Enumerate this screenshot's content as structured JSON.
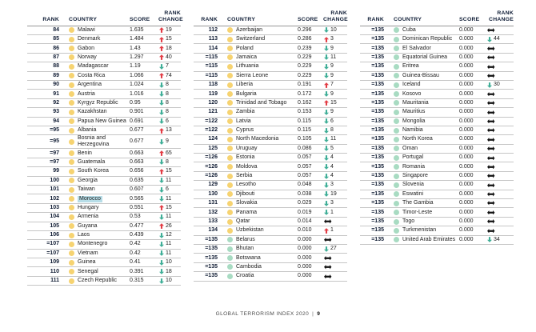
{
  "headers": {
    "rank": "RANK",
    "country": "COUNTRY",
    "score": "SCORE",
    "rank_change": "RANK CHANGE"
  },
  "footer": {
    "title": "GLOBAL TERRORISM INDEX 2020",
    "separator": "|",
    "page_number": "9"
  },
  "colors": {
    "header_text": "#0f1d36",
    "up_arrow": "#e23c44",
    "down_arrow": "#3fae97",
    "no_change_arrow": "#121212",
    "dot_yellow": "#f6d371",
    "dot_teal": "#a8dbc2",
    "highlight": "#b7dde7",
    "row_divider": "#c6c6c6"
  },
  "icons": {
    "up": "up-arrow-icon",
    "down": "down-arrow-icon",
    "same": "no-change-icon",
    "dot": "country-dot-icon"
  },
  "tables": [
    {
      "rows": [
        {
          "rank": "84",
          "country": "Malawi",
          "score": "1.635",
          "dot": "yellow",
          "change": "up",
          "change_value": "19",
          "highlight": false
        },
        {
          "rank": "85",
          "country": "Denmark",
          "score": "1.484",
          "dot": "yellow",
          "change": "up",
          "change_value": "15",
          "highlight": false
        },
        {
          "rank": "86",
          "country": "Gabon",
          "score": "1.43",
          "dot": "yellow",
          "change": "up",
          "change_value": "18",
          "highlight": false
        },
        {
          "rank": "87",
          "country": "Norway",
          "score": "1.297",
          "dot": "yellow",
          "change": "up",
          "change_value": "40",
          "highlight": false
        },
        {
          "rank": "88",
          "country": "Madagascar",
          "score": "1.19",
          "dot": "yellow",
          "change": "down",
          "change_value": "7",
          "highlight": false
        },
        {
          "rank": "89",
          "country": "Costa Rica",
          "score": "1.066",
          "dot": "yellow",
          "change": "up",
          "change_value": "74",
          "highlight": false
        },
        {
          "rank": "90",
          "country": "Argentina",
          "score": "1.024",
          "dot": "yellow",
          "change": "down",
          "change_value": "8",
          "highlight": false
        },
        {
          "rank": "91",
          "country": "Austria",
          "score": "1.016",
          "dot": "yellow",
          "change": "down",
          "change_value": "8",
          "highlight": false
        },
        {
          "rank": "92",
          "country": "Kyrgyz Republic",
          "score": "0.95",
          "dot": "yellow",
          "change": "down",
          "change_value": "8",
          "highlight": false
        },
        {
          "rank": "93",
          "country": "Kazakhstan",
          "score": "0.901",
          "dot": "yellow",
          "change": "down",
          "change_value": "8",
          "highlight": false
        },
        {
          "rank": "94",
          "country": "Papua New Guinea",
          "score": "0.691",
          "dot": "yellow",
          "change": "down",
          "change_value": "6",
          "highlight": false
        },
        {
          "rank": "=95",
          "country": "Albania",
          "score": "0.677",
          "dot": "yellow",
          "change": "up",
          "change_value": "13",
          "highlight": false
        },
        {
          "rank": "=95",
          "country": "Bosnia and Herzegovina",
          "score": "0.677",
          "dot": "yellow",
          "change": "down",
          "change_value": "9",
          "highlight": false
        },
        {
          "rank": "=97",
          "country": "Benin",
          "score": "0.663",
          "dot": "yellow",
          "change": "up",
          "change_value": "65",
          "highlight": false
        },
        {
          "rank": "=97",
          "country": "Guatemala",
          "score": "0.663",
          "dot": "yellow",
          "change": "down",
          "change_value": "8",
          "highlight": false
        },
        {
          "rank": "99",
          "country": "South Korea",
          "score": "0.656",
          "dot": "yellow",
          "change": "up",
          "change_value": "15",
          "highlight": false
        },
        {
          "rank": "100",
          "country": "Georgia",
          "score": "0.635",
          "dot": "yellow",
          "change": "down",
          "change_value": "11",
          "highlight": false
        },
        {
          "rank": "101",
          "country": "Taiwan",
          "score": "0.607",
          "dot": "yellow",
          "change": "down",
          "change_value": "6",
          "highlight": false
        },
        {
          "rank": "102",
          "country": "Morocco",
          "score": "0.565",
          "dot": "yellow",
          "change": "down",
          "change_value": "11",
          "highlight": true
        },
        {
          "rank": "103",
          "country": "Hungary",
          "score": "0.551",
          "dot": "yellow",
          "change": "up",
          "change_value": "15",
          "highlight": false
        },
        {
          "rank": "104",
          "country": "Armenia",
          "score": "0.53",
          "dot": "yellow",
          "change": "down",
          "change_value": "11",
          "highlight": false
        },
        {
          "rank": "105",
          "country": "Guyana",
          "score": "0.477",
          "dot": "yellow",
          "change": "up",
          "change_value": "26",
          "highlight": false
        },
        {
          "rank": "106",
          "country": "Laos",
          "score": "0.439",
          "dot": "yellow",
          "change": "down",
          "change_value": "12",
          "highlight": false
        },
        {
          "rank": "=107",
          "country": "Montenegro",
          "score": "0.42",
          "dot": "yellow",
          "change": "down",
          "change_value": "11",
          "highlight": false
        },
        {
          "rank": "=107",
          "country": "Vietnam",
          "score": "0.42",
          "dot": "yellow",
          "change": "down",
          "change_value": "11",
          "highlight": false
        },
        {
          "rank": "109",
          "country": "Guinea",
          "score": "0.41",
          "dot": "yellow",
          "change": "down",
          "change_value": "10",
          "highlight": false
        },
        {
          "rank": "110",
          "country": "Senegal",
          "score": "0.391",
          "dot": "yellow",
          "change": "down",
          "change_value": "18",
          "highlight": false
        },
        {
          "rank": "111",
          "country": "Czech Republic",
          "score": "0.315",
          "dot": "yellow",
          "change": "down",
          "change_value": "10",
          "highlight": false
        }
      ]
    },
    {
      "rows": [
        {
          "rank": "112",
          "country": "Azerbaijan",
          "score": "0.296",
          "dot": "yellow",
          "change": "down",
          "change_value": "10",
          "highlight": false
        },
        {
          "rank": "113",
          "country": "Switzerland",
          "score": "0.286",
          "dot": "yellow",
          "change": "up",
          "change_value": "3",
          "highlight": false
        },
        {
          "rank": "114",
          "country": "Poland",
          "score": "0.239",
          "dot": "yellow",
          "change": "down",
          "change_value": "9",
          "highlight": false
        },
        {
          "rank": "=115",
          "country": "Jamaica",
          "score": "0.229",
          "dot": "yellow",
          "change": "down",
          "change_value": "11",
          "highlight": false
        },
        {
          "rank": "=115",
          "country": "Lithuania",
          "score": "0.229",
          "dot": "yellow",
          "change": "down",
          "change_value": "9",
          "highlight": false
        },
        {
          "rank": "=115",
          "country": "Sierra Leone",
          "score": "0.229",
          "dot": "yellow",
          "change": "down",
          "change_value": "9",
          "highlight": false
        },
        {
          "rank": "118",
          "country": "Liberia",
          "score": "0.191",
          "dot": "yellow",
          "change": "up",
          "change_value": "7",
          "highlight": false
        },
        {
          "rank": "119",
          "country": "Bulgaria",
          "score": "0.172",
          "dot": "yellow",
          "change": "down",
          "change_value": "9",
          "highlight": false
        },
        {
          "rank": "120",
          "country": "Trinidad and Tobago",
          "score": "0.162",
          "dot": "yellow",
          "change": "up",
          "change_value": "15",
          "highlight": false
        },
        {
          "rank": "121",
          "country": "Zambia",
          "score": "0.153",
          "dot": "yellow",
          "change": "down",
          "change_value": "9",
          "highlight": false
        },
        {
          "rank": "=122",
          "country": "Latvia",
          "score": "0.115",
          "dot": "yellow",
          "change": "down",
          "change_value": "6",
          "highlight": false
        },
        {
          "rank": "=122",
          "country": "Cyprus",
          "score": "0.115",
          "dot": "yellow",
          "change": "down",
          "change_value": "8",
          "highlight": false
        },
        {
          "rank": "124",
          "country": "North Macedonia",
          "score": "0.105",
          "dot": "yellow",
          "change": "down",
          "change_value": "11",
          "highlight": false
        },
        {
          "rank": "125",
          "country": "Uruguay",
          "score": "0.086",
          "dot": "yellow",
          "change": "down",
          "change_value": "5",
          "highlight": false
        },
        {
          "rank": "=126",
          "country": "Estonia",
          "score": "0.057",
          "dot": "yellow",
          "change": "down",
          "change_value": "4",
          "highlight": false
        },
        {
          "rank": "=126",
          "country": "Moldova",
          "score": "0.057",
          "dot": "yellow",
          "change": "down",
          "change_value": "4",
          "highlight": false
        },
        {
          "rank": "=126",
          "country": "Serbia",
          "score": "0.057",
          "dot": "yellow",
          "change": "down",
          "change_value": "4",
          "highlight": false
        },
        {
          "rank": "129",
          "country": "Lesotho",
          "score": "0.048",
          "dot": "yellow",
          "change": "down",
          "change_value": "3",
          "highlight": false
        },
        {
          "rank": "130",
          "country": "Djibouti",
          "score": "0.038",
          "dot": "yellow",
          "change": "down",
          "change_value": "19",
          "highlight": false
        },
        {
          "rank": "131",
          "country": "Slovakia",
          "score": "0.029",
          "dot": "yellow",
          "change": "down",
          "change_value": "3",
          "highlight": false
        },
        {
          "rank": "132",
          "country": "Panama",
          "score": "0.019",
          "dot": "yellow",
          "change": "down",
          "change_value": "1",
          "highlight": false
        },
        {
          "rank": "133",
          "country": "Qatar",
          "score": "0.014",
          "dot": "yellow",
          "change": "same",
          "change_value": "",
          "highlight": false
        },
        {
          "rank": "134",
          "country": "Uzbekistan",
          "score": "0.010",
          "dot": "yellow",
          "change": "up",
          "change_value": "1",
          "highlight": false
        },
        {
          "rank": "=135",
          "country": "Belarus",
          "score": "0.000",
          "dot": "teal",
          "change": "same",
          "change_value": "",
          "highlight": false
        },
        {
          "rank": "=135",
          "country": "Bhutan",
          "score": "0.000",
          "dot": "teal",
          "change": "down",
          "change_value": "27",
          "highlight": false
        },
        {
          "rank": "=135",
          "country": "Botswana",
          "score": "0.000",
          "dot": "teal",
          "change": "same",
          "change_value": "",
          "highlight": false
        },
        {
          "rank": "=135",
          "country": "Cambodia",
          "score": "0.000",
          "dot": "teal",
          "change": "same",
          "change_value": "",
          "highlight": false
        },
        {
          "rank": "=135",
          "country": "Croatia",
          "score": "0.000",
          "dot": "teal",
          "change": "same",
          "change_value": "",
          "highlight": false
        }
      ]
    },
    {
      "rows": [
        {
          "rank": "=135",
          "country": "Cuba",
          "score": "0.000",
          "dot": "teal",
          "change": "same",
          "change_value": "",
          "highlight": false
        },
        {
          "rank": "=135",
          "country": "Dominican Republic",
          "score": "0.000",
          "dot": "teal",
          "change": "down",
          "change_value": "44",
          "highlight": false
        },
        {
          "rank": "=135",
          "country": "El Salvador",
          "score": "0.000",
          "dot": "teal",
          "change": "same",
          "change_value": "",
          "highlight": false
        },
        {
          "rank": "=135",
          "country": "Equatorial Guinea",
          "score": "0.000",
          "dot": "teal",
          "change": "same",
          "change_value": "",
          "highlight": false
        },
        {
          "rank": "=135",
          "country": "Eritrea",
          "score": "0.000",
          "dot": "teal",
          "change": "same",
          "change_value": "",
          "highlight": false
        },
        {
          "rank": "=135",
          "country": "Guinea-Bissau",
          "score": "0.000",
          "dot": "teal",
          "change": "same",
          "change_value": "",
          "highlight": false
        },
        {
          "rank": "=135",
          "country": "Iceland",
          "score": "0.000",
          "dot": "teal",
          "change": "down",
          "change_value": "30",
          "highlight": false
        },
        {
          "rank": "=135",
          "country": "Kosovo",
          "score": "0.000",
          "dot": "teal",
          "change": "same",
          "change_value": "",
          "highlight": false
        },
        {
          "rank": "=135",
          "country": "Mauritania",
          "score": "0.000",
          "dot": "teal",
          "change": "same",
          "change_value": "",
          "highlight": false
        },
        {
          "rank": "=135",
          "country": "Mauritius",
          "score": "0.000",
          "dot": "teal",
          "change": "same",
          "change_value": "",
          "highlight": false
        },
        {
          "rank": "=135",
          "country": "Mongolia",
          "score": "0.000",
          "dot": "teal",
          "change": "same",
          "change_value": "",
          "highlight": false
        },
        {
          "rank": "=135",
          "country": "Namibia",
          "score": "0.000",
          "dot": "teal",
          "change": "same",
          "change_value": "",
          "highlight": false
        },
        {
          "rank": "=135",
          "country": "North Korea",
          "score": "0.000",
          "dot": "teal",
          "change": "same",
          "change_value": "",
          "highlight": false
        },
        {
          "rank": "=135",
          "country": "Oman",
          "score": "0.000",
          "dot": "teal",
          "change": "same",
          "change_value": "",
          "highlight": false
        },
        {
          "rank": "=135",
          "country": "Portugal",
          "score": "0.000",
          "dot": "teal",
          "change": "same",
          "change_value": "",
          "highlight": false
        },
        {
          "rank": "=135",
          "country": "Romania",
          "score": "0.000",
          "dot": "teal",
          "change": "same",
          "change_value": "",
          "highlight": false
        },
        {
          "rank": "=135",
          "country": "Singapore",
          "score": "0.000",
          "dot": "teal",
          "change": "same",
          "change_value": "",
          "highlight": false
        },
        {
          "rank": "=135",
          "country": "Slovenia",
          "score": "0.000",
          "dot": "teal",
          "change": "same",
          "change_value": "",
          "highlight": false
        },
        {
          "rank": "=135",
          "country": "Eswatini",
          "score": "0.000",
          "dot": "teal",
          "change": "same",
          "change_value": "",
          "highlight": false
        },
        {
          "rank": "=135",
          "country": "The Gambia",
          "score": "0.000",
          "dot": "teal",
          "change": "same",
          "change_value": "",
          "highlight": false
        },
        {
          "rank": "=135",
          "country": "Timor-Leste",
          "score": "0.000",
          "dot": "teal",
          "change": "same",
          "change_value": "",
          "highlight": false
        },
        {
          "rank": "=135",
          "country": "Togo",
          "score": "0.000",
          "dot": "teal",
          "change": "same",
          "change_value": "",
          "highlight": false
        },
        {
          "rank": "=135",
          "country": "Turkmenistan",
          "score": "0.000",
          "dot": "teal",
          "change": "same",
          "change_value": "",
          "highlight": false
        },
        {
          "rank": "=135",
          "country": "United Arab Emirates",
          "score": "0.000",
          "dot": "teal",
          "change": "down",
          "change_value": "34",
          "highlight": false
        }
      ]
    }
  ]
}
